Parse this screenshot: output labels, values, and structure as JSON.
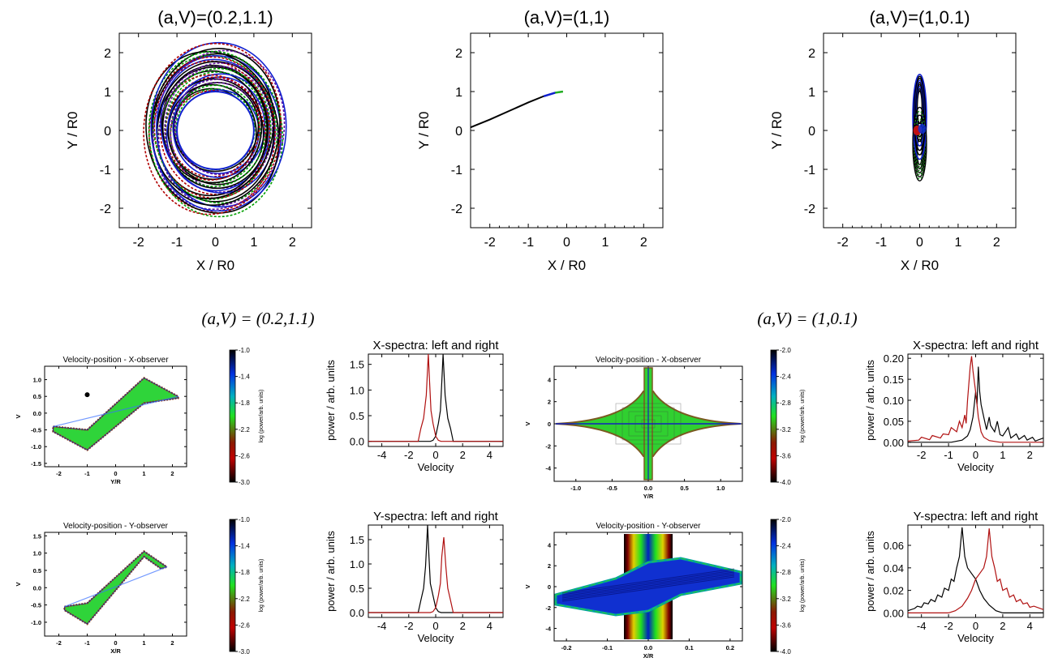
{
  "figure": {
    "row_labels": {
      "left": "(a,V) = (0.2,1.1)",
      "right": "(a,V) = (1,0.1)"
    }
  },
  "chart_data": [
    {
      "id": "orbit1",
      "type": "scatter",
      "title": "(a,V)=(0.2,1.1)",
      "xlabel": "X / R0",
      "ylabel": "Y / R0",
      "xlim": [
        -2.5,
        2.5
      ],
      "ylim": [
        -2.5,
        2.5
      ],
      "xticks": [
        "-2",
        "-1",
        "0",
        "1",
        "2"
      ],
      "yticks": [
        "-2",
        "-1",
        "0",
        "1",
        "2"
      ],
      "shape": "annulus",
      "inner_radius": 1.0,
      "outer_radius_x": 1.78,
      "outer_radius_y": 2.2
    },
    {
      "id": "orbit2",
      "type": "line",
      "title": "(a,V)=(1,1)",
      "xlabel": "X / R0",
      "ylabel": "Y / R0",
      "xlim": [
        -2.5,
        2.5
      ],
      "ylim": [
        -2.5,
        2.5
      ],
      "xticks": [
        "-2",
        "-1",
        "0",
        "1",
        "2"
      ],
      "yticks": [
        "-2",
        "-1",
        "0",
        "1",
        "2"
      ],
      "x": [
        -2.5,
        -2.0,
        -1.5,
        -1.0,
        -0.6,
        -0.3,
        -0.1
      ],
      "y": [
        0.08,
        0.28,
        0.5,
        0.72,
        0.88,
        0.97,
        1.0
      ]
    },
    {
      "id": "orbit3",
      "type": "scatter",
      "title": "(a,V)=(1,0.1)",
      "xlabel": "X / R0",
      "ylabel": "Y / R0",
      "xlim": [
        -2.5,
        2.5
      ],
      "ylim": [
        -2.5,
        2.5
      ],
      "xticks": [
        "-2",
        "-1",
        "0",
        "1",
        "2"
      ],
      "yticks": [
        "-2",
        "-1",
        "0",
        "1",
        "2"
      ],
      "shape": "figure-eight loops",
      "x_extent": [
        -0.18,
        0.18
      ],
      "y_extent": [
        -1.1,
        1.2
      ]
    },
    {
      "id": "vp_x_1",
      "type": "heatmap",
      "title": "Velocity-position - X-observer",
      "xlabel": "Y/R",
      "ylabel": "V",
      "xlim": [
        -2.5,
        2.5
      ],
      "ylim": [
        -1.6,
        1.4
      ],
      "xticks": [
        "-2",
        "-1",
        "0",
        "1",
        "2"
      ],
      "yticks": [
        "-1.5",
        "-1.0",
        "-0.5",
        "0.0",
        "0.5",
        "1.0"
      ],
      "envelope_x": [
        -2.2,
        -1.0,
        1.0,
        2.2,
        2.2,
        1.0,
        -1.0,
        -2.2
      ],
      "envelope_y": [
        -0.4,
        -0.5,
        1.05,
        0.5,
        0.45,
        0.3,
        -1.1,
        -0.55
      ],
      "dot": [
        -1.0,
        0.55
      ]
    },
    {
      "id": "cb_1a",
      "type": "heatmap",
      "ylabel": "log (power/arb. units)",
      "ylim": [
        -3.0,
        -1.0
      ],
      "ticks": [
        "-1.0",
        "-1.4",
        "-1.8",
        "-2.2",
        "-2.6",
        "-3.0"
      ]
    },
    {
      "id": "xspec_1",
      "type": "line",
      "title": "X-spectra: left and right",
      "xlabel": "Velocity",
      "ylabel": "power / arb. units",
      "xlim": [
        -5,
        5
      ],
      "ylim": [
        -0.1,
        1.7
      ],
      "xticks": [
        "-4",
        "-2",
        "0",
        "2",
        "4"
      ],
      "yticks": [
        "0.0",
        "0.5",
        "1.0",
        "1.5"
      ],
      "series": [
        {
          "color": "#000000",
          "x": [
            -5,
            -0.4,
            -0.2,
            0.0,
            0.2,
            0.35,
            0.45,
            0.55,
            0.7,
            0.9,
            1.1,
            1.3,
            5
          ],
          "y": [
            0,
            0,
            0.02,
            0.1,
            0.35,
            0.6,
            1.15,
            1.75,
            0.9,
            0.45,
            0.25,
            0,
            0
          ]
        },
        {
          "color": "#b01010",
          "x": [
            -5,
            -1.3,
            -1.1,
            -0.9,
            -0.7,
            -0.55,
            -0.45,
            -0.35,
            -0.2,
            0,
            0.2,
            0.4,
            5
          ],
          "y": [
            0,
            0,
            0.25,
            0.45,
            0.9,
            1.75,
            1.15,
            0.6,
            0.35,
            0.1,
            0.02,
            0,
            0
          ]
        }
      ]
    },
    {
      "id": "vp_x_2",
      "type": "heatmap",
      "title": "Velocity-position - X-observer",
      "xlabel": "Y/R",
      "ylabel": "V",
      "xlim": [
        -1.3,
        1.3
      ],
      "ylim": [
        -5.2,
        5.2
      ],
      "xticks": [
        "-1.0",
        "-0.5",
        "0.0",
        "0.5",
        "1.0"
      ],
      "yticks": [
        "-4",
        "-2",
        "0",
        "2",
        "4"
      ],
      "shape": "four-armed cross"
    },
    {
      "id": "cb_2a",
      "type": "heatmap",
      "ylabel": "log (power/arb. units)",
      "ylim": [
        -4.0,
        -2.0
      ],
      "ticks": [
        "-2.0",
        "-2.4",
        "-2.8",
        "-3.2",
        "-3.6",
        "-4.0"
      ]
    },
    {
      "id": "xspec_2",
      "type": "line",
      "title": "X-spectra: left and right",
      "xlabel": "Velocity",
      "ylabel": "power / arb. units",
      "xlim": [
        -2.5,
        2.5
      ],
      "ylim": [
        -0.01,
        0.21
      ],
      "xticks": [
        "-2",
        "-1",
        "0",
        "1",
        "2"
      ],
      "yticks": [
        "0.00",
        "0.05",
        "0.10",
        "0.15",
        "0.20"
      ],
      "series": [
        {
          "color": "#000000",
          "x": [
            -2.5,
            -0.9,
            -0.5,
            -0.3,
            -0.2,
            -0.1,
            0.0,
            0.05,
            0.1,
            0.15,
            0.2,
            0.3,
            0.4,
            0.5,
            0.55,
            0.7,
            0.8,
            0.9,
            1.0,
            1.2,
            1.3,
            1.5,
            1.6,
            1.8,
            1.9,
            2.1,
            2.2,
            2.5
          ],
          "y": [
            0,
            0,
            0.005,
            0.015,
            0.03,
            0.06,
            0.12,
            0.09,
            0.18,
            0.12,
            0.09,
            0.06,
            0.03,
            0.06,
            0.04,
            0.025,
            0.05,
            0.018,
            0.015,
            0.035,
            0.01,
            0.02,
            0.007,
            0.016,
            0.005,
            0.012,
            0.003,
            0.01
          ]
        },
        {
          "color": "#b01010",
          "x": [
            -2.5,
            -2.1,
            -2.0,
            -1.7,
            -1.6,
            -1.3,
            -1.2,
            -1.0,
            -0.9,
            -0.7,
            -0.6,
            -0.5,
            -0.4,
            -0.35,
            -0.3,
            -0.2,
            -0.15,
            -0.1,
            0.0,
            0.1,
            0.2,
            0.3,
            0.5,
            0.9,
            2.5
          ],
          "y": [
            0.003,
            0.005,
            0.012,
            0.006,
            0.016,
            0.01,
            0.02,
            0.018,
            0.035,
            0.025,
            0.05,
            0.035,
            0.065,
            0.045,
            0.1,
            0.18,
            0.205,
            0.17,
            0.12,
            0.06,
            0.025,
            0.012,
            0.004,
            0,
            0
          ]
        }
      ]
    },
    {
      "id": "vp_y_1",
      "type": "heatmap",
      "title": "Velocity-position - Y-observer",
      "xlabel": "X/R",
      "ylabel": "V",
      "xlim": [
        -2.5,
        2.5
      ],
      "ylim": [
        -1.4,
        1.6
      ],
      "xticks": [
        "-2",
        "-1",
        "0",
        "1",
        "2"
      ],
      "yticks": [
        "-1.0",
        "-0.5",
        "0.0",
        "0.5",
        "1.0",
        "1.5"
      ],
      "envelope_x": [
        -1.8,
        -1.0,
        1.0,
        1.8,
        1.6,
        1.0,
        -1.0,
        -1.8
      ],
      "envelope_y": [
        -0.55,
        -0.45,
        1.05,
        0.6,
        0.55,
        0.9,
        -1.05,
        -0.65
      ]
    },
    {
      "id": "cb_1b",
      "type": "heatmap",
      "ylabel": "log (power/arb. units)",
      "ylim": [
        -3.0,
        -1.0
      ],
      "ticks": [
        "-1.0",
        "-1.4",
        "-1.8",
        "-2.2",
        "-2.6",
        "-3.0"
      ]
    },
    {
      "id": "yspec_1",
      "type": "line",
      "title": "Y-spectra: left and right",
      "xlabel": "Velocity",
      "ylabel": "power / arb. units",
      "xlim": [
        -5,
        5
      ],
      "ylim": [
        -0.1,
        1.8
      ],
      "xticks": [
        "-4",
        "-2",
        "0",
        "2",
        "4"
      ],
      "yticks": [
        "0.0",
        "0.5",
        "1.0",
        "1.5"
      ],
      "series": [
        {
          "color": "#000000",
          "x": [
            -5,
            -1.3,
            -1.1,
            -0.9,
            -0.75,
            -0.6,
            -0.5,
            -0.4,
            -0.2,
            0,
            0.2,
            0.4,
            5
          ],
          "y": [
            0,
            0,
            0.25,
            0.5,
            0.95,
            1.8,
            1.15,
            0.6,
            0.35,
            0.1,
            0.02,
            0,
            0
          ]
        },
        {
          "color": "#b01010",
          "x": [
            -5,
            -0.4,
            -0.2,
            0.0,
            0.2,
            0.35,
            0.45,
            0.6,
            0.75,
            0.9,
            1.1,
            1.3,
            5
          ],
          "y": [
            0,
            0,
            0.02,
            0.1,
            0.35,
            0.6,
            1.15,
            1.55,
            0.95,
            0.5,
            0.25,
            0,
            0
          ]
        }
      ]
    },
    {
      "id": "vp_y_2",
      "type": "heatmap",
      "title": "Velocity-position - Y-observer",
      "xlabel": "X/R",
      "ylabel": "V",
      "xlim": [
        -0.23,
        0.23
      ],
      "ylim": [
        -5.2,
        5.2
      ],
      "xticks": [
        "-0.2",
        "-0.1",
        "0.0",
        "0.1",
        "0.2"
      ],
      "yticks": [
        "-4",
        "-2",
        "0",
        "2",
        "4"
      ],
      "shape": "tilted band"
    },
    {
      "id": "cb_2b",
      "type": "heatmap",
      "ylabel": "log (power/arb. units)",
      "ylim": [
        -4.0,
        -2.0
      ],
      "ticks": [
        "-2.0",
        "-2.4",
        "-2.8",
        "-3.2",
        "-3.6",
        "-4.0"
      ]
    },
    {
      "id": "yspec_2",
      "type": "line",
      "title": "Y-spectra: left and right",
      "xlabel": "Velocity",
      "ylabel": "power / arb. units",
      "xlim": [
        -5,
        5
      ],
      "ylim": [
        -0.004,
        0.078
      ],
      "xticks": [
        "-4",
        "-2",
        "0",
        "2",
        "4"
      ],
      "yticks": [
        "0.00",
        "0.02",
        "0.04",
        "0.06"
      ],
      "series": [
        {
          "color": "#000000",
          "x": [
            -5,
            -4.5,
            -4.3,
            -4,
            -3.8,
            -3.5,
            -3.3,
            -3.0,
            -2.8,
            -2.5,
            -2.3,
            -2.0,
            -1.8,
            -1.6,
            -1.4,
            -1.2,
            -1.0,
            -0.8,
            -0.6,
            -0.3,
            0,
            0.3,
            0.6,
            1.0,
            1.5,
            2.0,
            5
          ],
          "y": [
            0.002,
            0.004,
            0.006,
            0.005,
            0.009,
            0.008,
            0.012,
            0.01,
            0.016,
            0.014,
            0.022,
            0.02,
            0.03,
            0.028,
            0.04,
            0.05,
            0.076,
            0.05,
            0.04,
            0.035,
            0.03,
            0.02,
            0.013,
            0.007,
            0.002,
            0,
            0
          ]
        },
        {
          "color": "#b01010",
          "x": [
            -5,
            -2,
            -1.5,
            -1.0,
            -0.6,
            -0.3,
            0,
            0.3,
            0.6,
            0.8,
            1.0,
            1.2,
            1.4,
            1.6,
            1.8,
            2.0,
            2.3,
            2.5,
            2.8,
            3.0,
            3.3,
            3.5,
            3.8,
            4.0,
            4.3,
            5
          ],
          "y": [
            0,
            0,
            0.002,
            0.006,
            0.013,
            0.02,
            0.03,
            0.035,
            0.04,
            0.05,
            0.075,
            0.05,
            0.04,
            0.028,
            0.03,
            0.02,
            0.022,
            0.014,
            0.016,
            0.01,
            0.012,
            0.008,
            0.009,
            0.005,
            0.006,
            0.003
          ]
        }
      ]
    }
  ]
}
